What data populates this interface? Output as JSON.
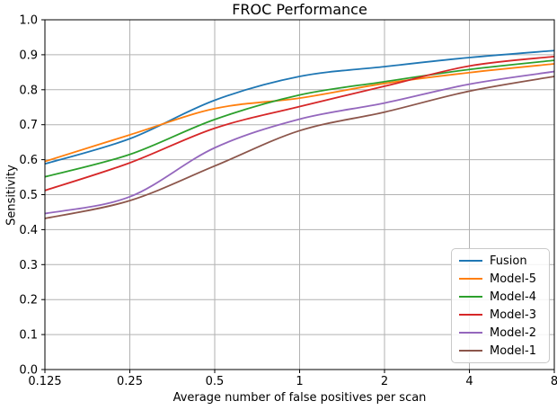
{
  "chart_data": {
    "type": "line",
    "title": "FROC Performance",
    "xlabel": "Average number of false positives per scan",
    "ylabel": "Sensitivity",
    "x_scale": "log2",
    "xlim": [
      0.125,
      8
    ],
    "ylim": [
      0.0,
      1.0
    ],
    "grid": true,
    "legend_position": "lower right",
    "x_ticks": [
      0.125,
      0.25,
      0.5,
      1,
      2,
      4,
      8
    ],
    "x_tick_labels": [
      "0.125",
      "0.25",
      "0.5",
      "1",
      "2",
      "4",
      "8"
    ],
    "y_ticks": [
      0.0,
      0.1,
      0.2,
      0.3,
      0.4,
      0.5,
      0.6,
      0.7,
      0.8,
      0.9,
      1.0
    ],
    "y_tick_labels": [
      "0.0",
      "0.1",
      "0.2",
      "0.3",
      "0.4",
      "0.5",
      "0.6",
      "0.7",
      "0.8",
      "0.9",
      "1.0"
    ],
    "x": [
      0.125,
      0.25,
      0.5,
      1,
      2,
      4,
      8
    ],
    "series": [
      {
        "name": "Fusion",
        "color": "#1f77b4",
        "values": [
          0.588,
          0.66,
          0.77,
          0.838,
          0.866,
          0.892,
          0.912
        ]
      },
      {
        "name": "Model-5",
        "color": "#ff7f0e",
        "values": [
          0.595,
          0.671,
          0.746,
          0.776,
          0.818,
          0.849,
          0.874
        ]
      },
      {
        "name": "Model-4",
        "color": "#2ca02c",
        "values": [
          0.551,
          0.615,
          0.715,
          0.785,
          0.823,
          0.858,
          0.884
        ]
      },
      {
        "name": "Model-3",
        "color": "#d62728",
        "values": [
          0.512,
          0.591,
          0.69,
          0.752,
          0.81,
          0.868,
          0.895
        ]
      },
      {
        "name": "Model-2",
        "color": "#9467bd",
        "values": [
          0.446,
          0.494,
          0.634,
          0.716,
          0.762,
          0.816,
          0.852
        ]
      },
      {
        "name": "Model-1",
        "color": "#8c564b",
        "values": [
          0.432,
          0.483,
          0.582,
          0.683,
          0.736,
          0.796,
          0.838
        ]
      }
    ]
  },
  "colors": {
    "background": "#ffffff",
    "grid": "#b2b2b2",
    "spine": "#000000",
    "tick_label": "#000000",
    "legend_border": "#c9c9c9"
  }
}
